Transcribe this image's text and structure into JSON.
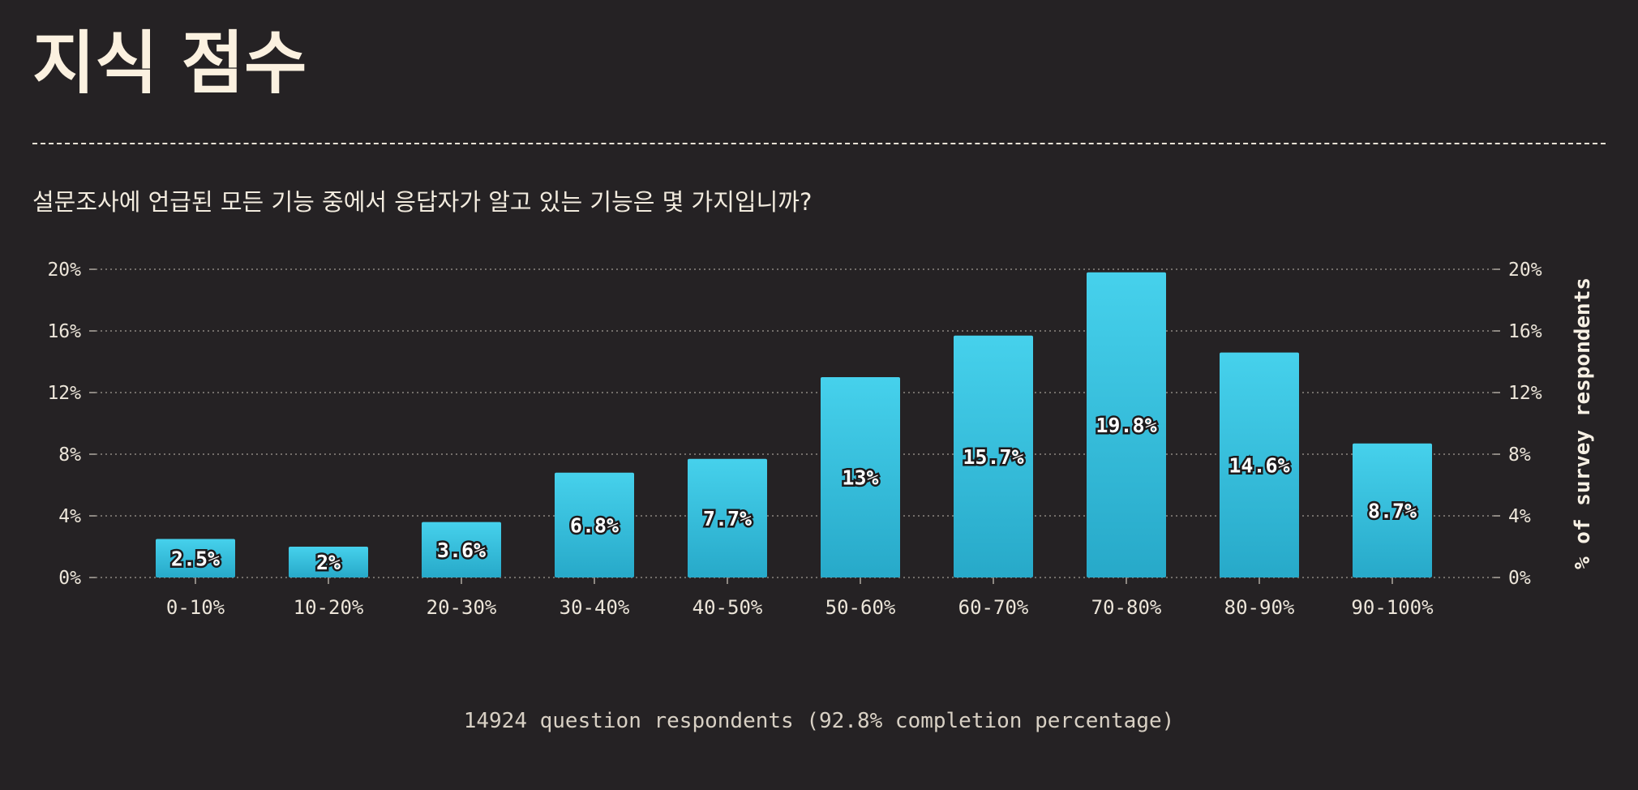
{
  "header": {
    "title": "지식 점수",
    "question": "설문조사에 언급된 모든 기능 중에서 응답자가 알고 있는 기능은 몇 가지입니까?"
  },
  "footer": {
    "text": "14924 question respondents (92.8% completion percentage)"
  },
  "colors": {
    "background": "#252224",
    "bar_top": "#46d1ec",
    "bar_bottom": "#27a9c9",
    "grid": "#8d8882",
    "text": "#f3ecdf"
  },
  "chart_data": {
    "type": "bar",
    "categories": [
      "0-10%",
      "10-20%",
      "20-30%",
      "30-40%",
      "40-50%",
      "50-60%",
      "60-70%",
      "70-80%",
      "80-90%",
      "90-100%"
    ],
    "values": [
      2.5,
      2,
      3.6,
      6.8,
      7.7,
      13,
      15.7,
      19.8,
      14.6,
      8.7
    ],
    "data_labels": [
      "2.5%",
      "2%",
      "3.6%",
      "6.8%",
      "7.7%",
      "13%",
      "15.7%",
      "19.8%",
      "14.6%",
      "8.7%"
    ],
    "ylabel": "% of survey respondents",
    "ylim": [
      0,
      20
    ],
    "yticks": [
      0,
      4,
      8,
      12,
      16,
      20
    ],
    "ytick_labels": [
      "0%",
      "4%",
      "8%",
      "12%",
      "16%",
      "20%"
    ],
    "grid": true,
    "grid_style": "dotted",
    "y_axis_both_sides": true
  }
}
